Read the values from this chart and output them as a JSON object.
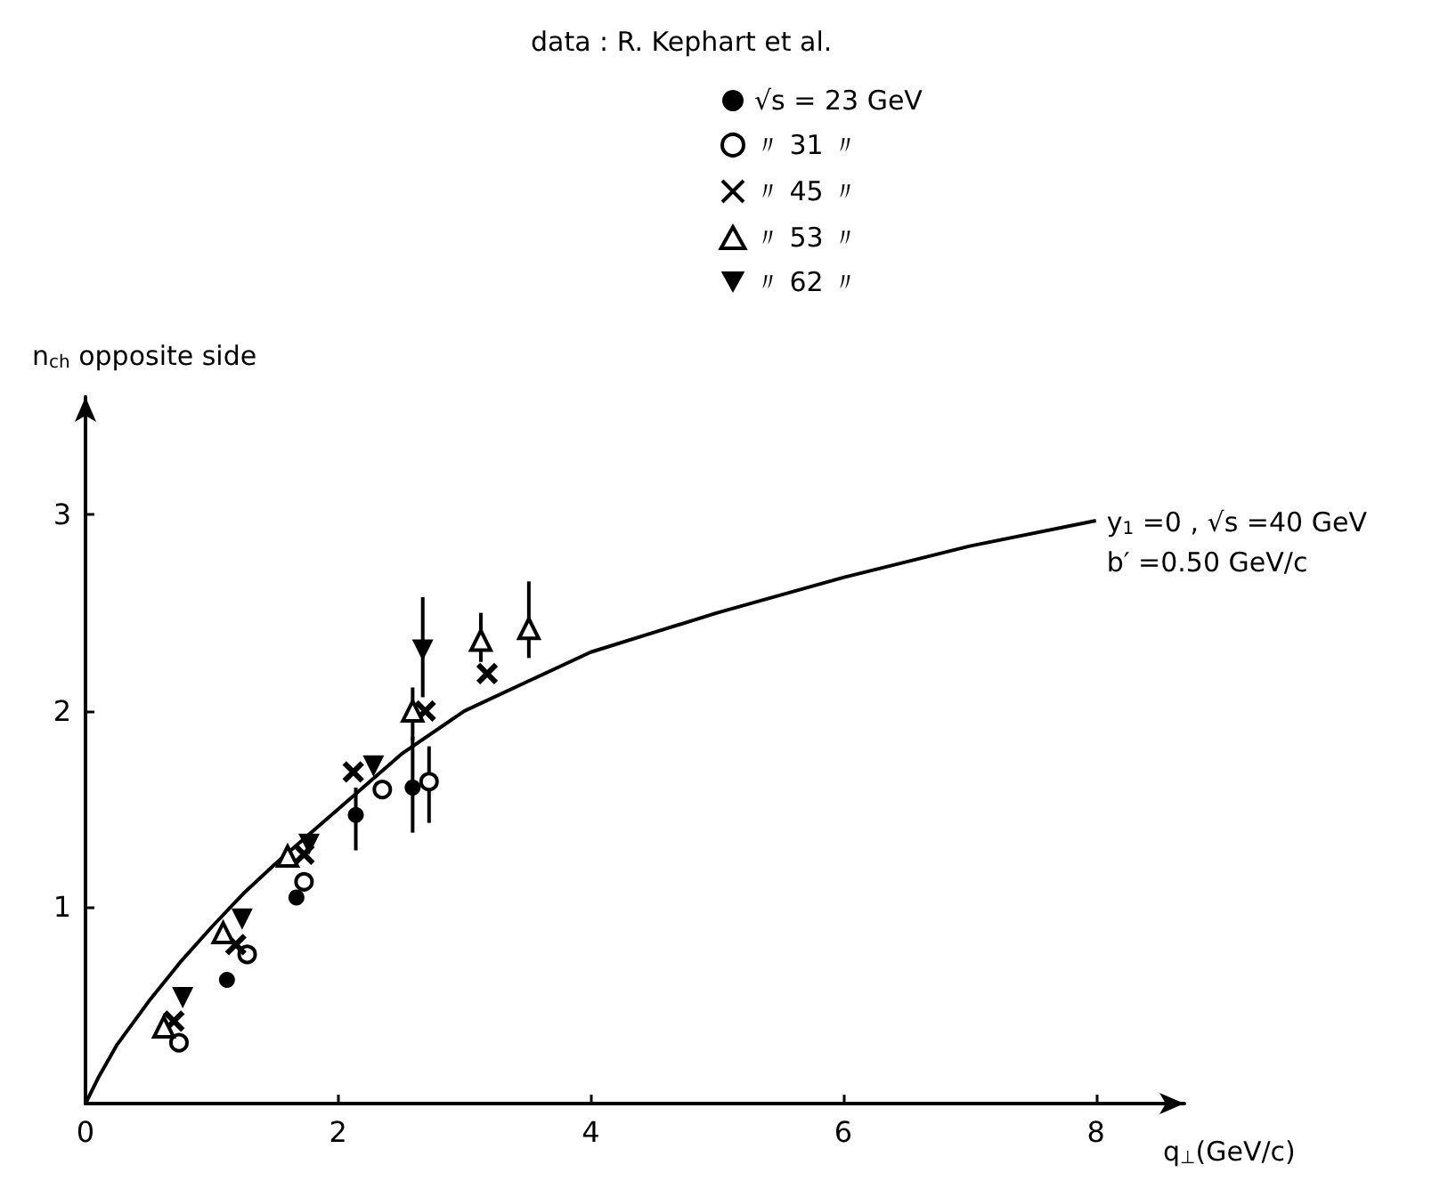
{
  "chart_data": {
    "type": "scatter",
    "xlabel": "q$_{⊥}$(GeV/c)",
    "ylabel": "n$_{ch}$ opposite side",
    "legend_title": "data : R. Kephart et al.",
    "legend": "top",
    "grid": false,
    "xlim": [
      0,
      8.7
    ],
    "xticks": [
      0,
      2,
      4,
      6,
      8
    ],
    "ylim": [
      0,
      3.6
    ],
    "yticks": [
      1,
      2,
      3
    ],
    "annotations": [
      {
        "text": "y$_{1}$ =0 , √s =40 GeV",
        "x": 8,
        "y": 2.97
      },
      {
        "text": "b′ =0.50 GeV/c",
        "x": 8,
        "y": 2.97
      }
    ],
    "series": [
      {
        "name": "√s = 23 GeV",
        "color": "#000000",
        "marker": "circle",
        "x": [
          1.12,
          1.67,
          2.14,
          2.59
        ],
        "values": [
          0.63,
          1.05,
          1.47,
          1.61
        ],
        "errors": [
          null,
          null,
          [
            1.29,
            1.61
          ],
          [
            1.38,
            1.87
          ]
        ]
      },
      {
        "name": "〃 31 〃",
        "color": "#000000",
        "marker": "open-circle",
        "x": [
          0.74,
          1.28,
          1.73,
          2.35,
          2.72
        ],
        "values": [
          0.31,
          0.76,
          1.13,
          1.6,
          1.64
        ],
        "errors": [
          null,
          null,
          null,
          null,
          [
            1.43,
            1.82
          ]
        ]
      },
      {
        "name": "〃 45 〃",
        "color": "#000000",
        "marker": "cross",
        "x": [
          0.7,
          1.19,
          1.73,
          2.12,
          2.69,
          3.18
        ],
        "values": [
          0.42,
          0.81,
          1.27,
          1.69,
          2.0,
          2.19
        ]
      },
      {
        "name": "〃 53 〃",
        "color": "#000000",
        "marker": "triangle",
        "x": [
          0.62,
          1.09,
          1.6,
          2.59,
          3.13,
          3.51
        ],
        "values": [
          0.39,
          0.87,
          1.26,
          2.0,
          2.36,
          2.42
        ],
        "errors": [
          null,
          null,
          null,
          [
            1.85,
            2.12
          ],
          [
            2.25,
            2.5
          ],
          [
            2.27,
            2.66
          ]
        ]
      },
      {
        "name": "〃 62 〃",
        "color": "#000000",
        "marker": "triangle-down",
        "x": [
          0.77,
          1.24,
          1.77,
          2.28,
          2.67
        ],
        "values": [
          0.54,
          0.94,
          1.32,
          1.72,
          2.31
        ],
        "errors": [
          null,
          null,
          null,
          null,
          [
            2.07,
            2.58
          ]
        ]
      },
      {
        "type": "line",
        "color": "#000000",
        "marker": "none",
        "x": [
          0,
          0.1,
          0.25,
          0.5,
          0.75,
          1,
          1.25,
          1.5,
          1.75,
          2,
          2.5,
          3,
          3.5,
          4,
          4.5,
          5,
          6,
          7,
          8
        ],
        "values": [
          0,
          0.13,
          0.3,
          0.52,
          0.72,
          0.9,
          1.07,
          1.22,
          1.36,
          1.5,
          1.78,
          2.0,
          2.15,
          2.3,
          2.4,
          2.5,
          2.68,
          2.84,
          2.97
        ]
      }
    ]
  }
}
